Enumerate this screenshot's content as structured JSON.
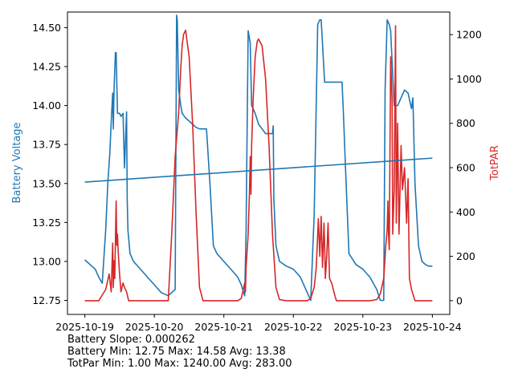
{
  "chart_data": {
    "type": "line",
    "x_ticks": [
      "2025-10-19",
      "2025-10-20",
      "2025-10-21",
      "2025-10-22",
      "2025-10-23",
      "2025-10-24"
    ],
    "xlim": [
      -0.25,
      5.25
    ],
    "left_axis": {
      "label": "Battery Voltage",
      "color": "#1f77b4",
      "ylim": [
        12.66,
        14.6
      ],
      "ticks": [
        "12.75",
        "13.00",
        "13.25",
        "13.50",
        "13.75",
        "14.00",
        "14.25",
        "14.50"
      ]
    },
    "right_axis": {
      "label": "TotPAR",
      "color": "#d62728",
      "ylim": [
        -62,
        1302
      ],
      "ticks": [
        "0",
        "200",
        "400",
        "600",
        "800",
        "1000",
        "1200"
      ]
    },
    "series": [
      {
        "name": "Battery Voltage",
        "axis": "left",
        "color": "#1f77b4",
        "x": [
          0,
          0.05,
          0.1,
          0.15,
          0.2,
          0.25,
          0.3,
          0.33,
          0.36,
          0.38,
          0.4,
          0.41,
          0.42,
          0.44,
          0.45,
          0.47,
          0.5,
          0.52,
          0.55,
          0.57,
          0.6,
          0.61,
          0.62,
          0.65,
          0.7,
          0.8,
          0.9,
          1.0,
          1.1,
          1.2,
          1.3,
          1.32,
          1.33,
          1.35,
          1.38,
          1.4,
          1.45,
          1.5,
          1.55,
          1.6,
          1.65,
          1.7,
          1.75,
          1.8,
          1.85,
          1.9,
          2.0,
          2.1,
          2.2,
          2.25,
          2.3,
          2.32,
          2.35,
          2.38,
          2.4,
          2.45,
          2.5,
          2.55,
          2.6,
          2.65,
          2.7,
          2.71,
          2.72,
          2.75,
          2.8,
          2.9,
          3.0,
          3.1,
          3.2,
          3.25,
          3.3,
          3.35,
          3.38,
          3.4,
          3.45,
          3.5,
          3.52,
          3.55,
          3.6,
          3.65,
          3.7,
          3.72,
          3.75,
          3.8,
          3.9,
          4.0,
          4.1,
          4.2,
          4.25,
          4.3,
          4.32,
          4.35,
          4.38,
          4.4,
          4.45,
          4.5,
          4.55,
          4.6,
          4.65,
          4.7,
          4.72,
          4.75,
          4.8,
          4.85,
          4.9,
          4.95,
          5.0
        ],
        "y": [
          13.01,
          12.99,
          12.97,
          12.95,
          12.9,
          12.86,
          13.2,
          13.5,
          13.7,
          13.9,
          14.08,
          13.85,
          14.1,
          14.34,
          14.34,
          13.95,
          13.95,
          13.93,
          13.95,
          13.6,
          13.96,
          13.4,
          13.2,
          13.05,
          13.0,
          12.95,
          12.9,
          12.85,
          12.8,
          12.78,
          12.82,
          14.58,
          14.55,
          14.1,
          14.0,
          13.95,
          13.92,
          13.9,
          13.88,
          13.86,
          13.85,
          13.85,
          13.85,
          13.5,
          13.1,
          13.05,
          13.0,
          12.95,
          12.9,
          12.85,
          12.78,
          13.2,
          14.48,
          14.4,
          14.0,
          13.95,
          13.88,
          13.85,
          13.82,
          13.82,
          13.82,
          13.87,
          13.4,
          13.1,
          13.0,
          12.97,
          12.95,
          12.9,
          12.8,
          12.75,
          13.3,
          14.52,
          14.55,
          14.55,
          14.15,
          14.15,
          14.15,
          14.15,
          14.15,
          14.15,
          14.15,
          13.95,
          13.6,
          13.05,
          12.98,
          12.95,
          12.9,
          12.82,
          12.75,
          12.75,
          14.1,
          14.55,
          14.52,
          14.48,
          14.0,
          14.0,
          14.05,
          14.1,
          14.08,
          13.98,
          14.05,
          13.5,
          13.1,
          13.0,
          12.98,
          12.97,
          12.97
        ]
      },
      {
        "name": "TotPAR",
        "axis": "right",
        "color": "#d62728",
        "x": [
          0,
          0.1,
          0.2,
          0.3,
          0.35,
          0.38,
          0.4,
          0.41,
          0.42,
          0.43,
          0.45,
          0.46,
          0.47,
          0.48,
          0.5,
          0.52,
          0.55,
          0.57,
          0.6,
          0.63,
          0.7,
          0.8,
          0.9,
          1.0,
          1.1,
          1.2,
          1.25,
          1.3,
          1.35,
          1.38,
          1.4,
          1.42,
          1.45,
          1.5,
          1.55,
          1.6,
          1.65,
          1.7,
          1.75,
          1.8,
          1.85,
          1.9,
          2.0,
          2.1,
          2.2,
          2.25,
          2.3,
          2.31,
          2.32,
          2.35,
          2.37,
          2.38,
          2.39,
          2.4,
          2.42,
          2.45,
          2.48,
          2.5,
          2.55,
          2.6,
          2.65,
          2.7,
          2.75,
          2.8,
          2.9,
          3.0,
          3.1,
          3.2,
          3.25,
          3.3,
          3.33,
          3.35,
          3.36,
          3.38,
          3.4,
          3.42,
          3.44,
          3.45,
          3.46,
          3.48,
          3.5,
          3.52,
          3.55,
          3.6,
          3.62,
          3.65,
          3.7,
          3.75,
          3.8,
          3.9,
          4.0,
          4.1,
          4.2,
          4.25,
          4.3,
          4.33,
          4.35,
          4.36,
          4.37,
          4.38,
          4.4,
          4.42,
          4.43,
          4.45,
          4.47,
          4.48,
          4.5,
          4.52,
          4.55,
          4.57,
          4.6,
          4.63,
          4.65,
          4.67,
          4.7,
          4.75,
          4.8,
          4.9,
          5.0
        ],
        "y": [
          0,
          0,
          0,
          50,
          120,
          40,
          260,
          60,
          180,
          100,
          450,
          250,
          300,
          220,
          120,
          40,
          80,
          60,
          40,
          0,
          0,
          0,
          0,
          0,
          0,
          0,
          300,
          650,
          850,
          1050,
          1150,
          1200,
          1220,
          1100,
          800,
          400,
          60,
          0,
          0,
          0,
          0,
          0,
          0,
          0,
          0,
          10,
          80,
          40,
          150,
          300,
          500,
          650,
          480,
          700,
          900,
          1100,
          1170,
          1180,
          1150,
          1000,
          700,
          300,
          60,
          5,
          0,
          0,
          0,
          0,
          10,
          60,
          150,
          300,
          370,
          200,
          380,
          150,
          350,
          250,
          100,
          200,
          350,
          100,
          80,
          20,
          0,
          0,
          0,
          0,
          0,
          0,
          0,
          0,
          5,
          30,
          100,
          250,
          320,
          450,
          300,
          230,
          1100,
          900,
          300,
          500,
          1240,
          350,
          800,
          300,
          700,
          500,
          600,
          350,
          550,
          100,
          50,
          0,
          0,
          0,
          0
        ]
      }
    ],
    "stats": {
      "slope": "Battery Slope: 0.000262",
      "battery": "Battery Min: 12.75 Max: 14.58 Avg: 13.38",
      "totpar": "TotPar Min: 1.00 Max: 1240.00 Avg: 283.00"
    }
  }
}
